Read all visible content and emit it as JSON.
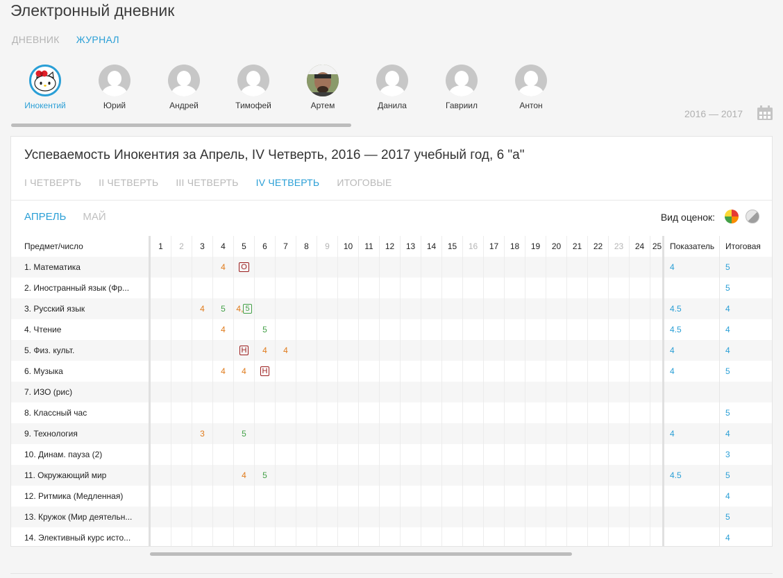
{
  "app": {
    "title": "Электронный дневник"
  },
  "nav": {
    "tabs": [
      {
        "label": "ДНЕВНИК",
        "active": false
      },
      {
        "label": "ЖУРНАЛ",
        "active": true
      }
    ]
  },
  "students": [
    {
      "name": "Инокентий",
      "avatar": "hello-kitty-avatar",
      "selected": true
    },
    {
      "name": "Юрий",
      "avatar": "user-placeholder-avatar",
      "selected": false
    },
    {
      "name": "Андрей",
      "avatar": "user-placeholder-avatar",
      "selected": false
    },
    {
      "name": "Тимофей",
      "avatar": "user-placeholder-avatar",
      "selected": false
    },
    {
      "name": "Артем",
      "avatar": "photo-avatar",
      "selected": false
    },
    {
      "name": "Данила",
      "avatar": "user-placeholder-avatar",
      "selected": false
    },
    {
      "name": "Гавриил",
      "avatar": "user-placeholder-avatar",
      "selected": false
    },
    {
      "name": "Антон",
      "avatar": "user-placeholder-avatar",
      "selected": false
    }
  ],
  "year": {
    "label": "2016 — 2017",
    "icon": "calendar-icon"
  },
  "card": {
    "title": "Успеваемость Инокентия за Апрель, IV Четверть, 2016 — 2017 учебный год, 6 \"а\"",
    "quarters": [
      {
        "label": "I ЧЕТВЕРТЬ",
        "active": false
      },
      {
        "label": "II ЧЕТВЕРТЬ",
        "active": false
      },
      {
        "label": "III ЧЕТВЕРТЬ",
        "active": false
      },
      {
        "label": "IV ЧЕТВЕРТЬ",
        "active": true
      },
      {
        "label": "ИТОГОВЫЕ",
        "active": false
      }
    ],
    "months": [
      {
        "label": "АПРЕЛЬ",
        "active": true
      },
      {
        "label": "МАЙ",
        "active": false
      }
    ],
    "grade_view_label": "Вид оценок:",
    "grade_view_icons": [
      "color-grades-icon",
      "monochrome-grades-icon"
    ]
  },
  "colors": {
    "accent": "#2a9fd6",
    "grade_orange": "#e07b1c",
    "grade_green": "#43a047",
    "grade_red_box": "#9b1c1c"
  },
  "journal": {
    "subject_header": "Предмет/число",
    "days": [
      "1",
      "2",
      "3",
      "4",
      "5",
      "6",
      "7",
      "8",
      "9",
      "10",
      "11",
      "12",
      "13",
      "14",
      "15",
      "16",
      "17",
      "18",
      "19",
      "20",
      "21",
      "22",
      "23",
      "24",
      "25"
    ],
    "muted_days": [
      "2",
      "9",
      "16",
      "23"
    ],
    "indicator_header": "Показатель",
    "final_header": "Итоговая",
    "rows": [
      {
        "subject": "1. Математика",
        "grades": [
          {
            "day": "4",
            "items": [
              {
                "v": "4",
                "color": "orange"
              }
            ]
          },
          {
            "day": "5",
            "items": [
              {
                "v": "О",
                "color": "red",
                "boxed": true
              }
            ]
          }
        ],
        "indicator": "4",
        "final": "5"
      },
      {
        "subject": "2. Иностранный язык (Фр...",
        "grades": [],
        "indicator": "",
        "final": "5"
      },
      {
        "subject": "3. Русский язык",
        "grades": [
          {
            "day": "3",
            "items": [
              {
                "v": "4",
                "color": "orange"
              }
            ]
          },
          {
            "day": "4",
            "items": [
              {
                "v": "5",
                "color": "green"
              }
            ]
          },
          {
            "day": "5",
            "items": [
              {
                "v": "4",
                "color": "orange"
              },
              {
                "v": "5",
                "color": "green",
                "boxed": true
              }
            ]
          }
        ],
        "indicator": "4.5",
        "final": "4"
      },
      {
        "subject": "4. Чтение",
        "grades": [
          {
            "day": "4",
            "items": [
              {
                "v": "4",
                "color": "orange"
              }
            ]
          },
          {
            "day": "6",
            "items": [
              {
                "v": "5",
                "color": "green"
              }
            ]
          }
        ],
        "indicator": "4.5",
        "final": "4"
      },
      {
        "subject": "5. Физ. культ.",
        "grades": [
          {
            "day": "5",
            "items": [
              {
                "v": "Н",
                "color": "red",
                "boxed": true
              }
            ]
          },
          {
            "day": "6",
            "items": [
              {
                "v": "4",
                "color": "orange"
              }
            ]
          },
          {
            "day": "7",
            "items": [
              {
                "v": "4",
                "color": "orange"
              }
            ]
          }
        ],
        "indicator": "4",
        "final": "4"
      },
      {
        "subject": "6. Музыка",
        "grades": [
          {
            "day": "4",
            "items": [
              {
                "v": "4",
                "color": "orange"
              }
            ]
          },
          {
            "day": "5",
            "items": [
              {
                "v": "4",
                "color": "orange"
              }
            ]
          },
          {
            "day": "6",
            "items": [
              {
                "v": "Н",
                "color": "red",
                "boxed": true
              }
            ]
          }
        ],
        "indicator": "4",
        "final": "5"
      },
      {
        "subject": "7. ИЗО (рис)",
        "grades": [],
        "indicator": "",
        "final": ""
      },
      {
        "subject": "8. Классный час",
        "grades": [],
        "indicator": "",
        "final": "5"
      },
      {
        "subject": "9. Технология",
        "grades": [
          {
            "day": "3",
            "items": [
              {
                "v": "3",
                "color": "orange"
              }
            ]
          },
          {
            "day": "5",
            "items": [
              {
                "v": "5",
                "color": "green"
              }
            ]
          }
        ],
        "indicator": "4",
        "final": "4"
      },
      {
        "subject": "10. Динам. пауза (2)",
        "grades": [],
        "indicator": "",
        "final": "3"
      },
      {
        "subject": "11. Окружающий мир",
        "grades": [
          {
            "day": "5",
            "items": [
              {
                "v": "4",
                "color": "orange"
              }
            ]
          },
          {
            "day": "6",
            "items": [
              {
                "v": "5",
                "color": "green"
              }
            ]
          }
        ],
        "indicator": "4.5",
        "final": "5"
      },
      {
        "subject": "12. Ритмика (Медленная)",
        "grades": [],
        "indicator": "",
        "final": "4"
      },
      {
        "subject": "13. Кружок (Мир деятельн...",
        "grades": [],
        "indicator": "",
        "final": "5"
      },
      {
        "subject": "14. Элективный курс исто...",
        "grades": [],
        "indicator": "",
        "final": "4"
      }
    ]
  }
}
